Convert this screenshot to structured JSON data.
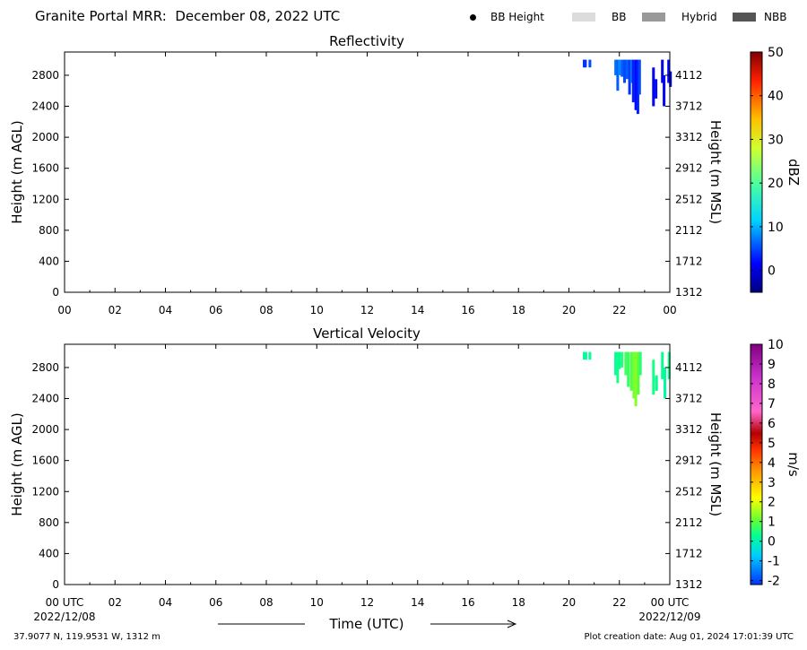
{
  "header": {
    "title": "Granite Portal MRR:  December 08, 2022 UTC",
    "legend": [
      {
        "label": "BB Height",
        "kind": "dot",
        "color": "#000000"
      },
      {
        "label": "BB",
        "kind": "swatch",
        "color": "#dcdcdc"
      },
      {
        "label": "Hybrid",
        "kind": "swatch",
        "color": "#999999"
      },
      {
        "label": "NBB",
        "kind": "swatch",
        "color": "#555555"
      }
    ]
  },
  "footer": {
    "location": "37.9077 N, 119.9531 W, 1312 m",
    "creation": "Plot creation date: Aug 01, 2024 17:01:39 UTC",
    "time_label": "Time (UTC)",
    "start_date": "2022/12/08",
    "end_date": "2022/12/09"
  },
  "chart_data": [
    {
      "type": "heatmap",
      "title": "Reflectivity",
      "xlabel": "",
      "ylabel": "Height (m AGL)",
      "ylabel_right": "Height (m MSL)",
      "x_ticks": [
        "00",
        "02",
        "04",
        "06",
        "08",
        "10",
        "12",
        "14",
        "16",
        "18",
        "20",
        "22",
        "00"
      ],
      "x_range_hours": [
        0,
        24
      ],
      "y_range": [
        0,
        3100
      ],
      "y_ticks": [
        0,
        400,
        800,
        1200,
        1600,
        2000,
        2400,
        2800
      ],
      "y_ticks_right": [
        "1312",
        "1712",
        "2112",
        "2512",
        "2912",
        "3312",
        "3712",
        "4112"
      ],
      "colorbar": {
        "label": "dBZ",
        "range": [
          -5,
          50
        ],
        "ticks": [
          0,
          10,
          20,
          30,
          40,
          50
        ]
      },
      "columns": [
        {
          "t": 20.55,
          "top": 3000,
          "bottom": 2900,
          "value": 4
        },
        {
          "t": 20.6,
          "top": 3000,
          "bottom": 2900,
          "value": 4
        },
        {
          "t": 20.78,
          "top": 3000,
          "bottom": 2900,
          "value": 5
        },
        {
          "t": 21.8,
          "top": 3000,
          "bottom": 2800,
          "value": 7
        },
        {
          "t": 21.88,
          "top": 3000,
          "bottom": 2600,
          "value": 6
        },
        {
          "t": 21.95,
          "top": 3000,
          "bottom": 2800,
          "value": 8
        },
        {
          "t": 22.05,
          "top": 3000,
          "bottom": 2780,
          "value": 6
        },
        {
          "t": 22.15,
          "top": 3000,
          "bottom": 2700,
          "value": 5
        },
        {
          "t": 22.25,
          "top": 3000,
          "bottom": 2750,
          "value": 6
        },
        {
          "t": 22.35,
          "top": 3000,
          "bottom": 2550,
          "value": 4
        },
        {
          "t": 22.42,
          "top": 3000,
          "bottom": 2700,
          "value": 7
        },
        {
          "t": 22.5,
          "top": 3000,
          "bottom": 2450,
          "value": 3
        },
        {
          "t": 22.6,
          "top": 3000,
          "bottom": 2350,
          "value": 2
        },
        {
          "t": 22.68,
          "top": 3000,
          "bottom": 2300,
          "value": 3
        },
        {
          "t": 22.75,
          "top": 3000,
          "bottom": 2550,
          "value": 5
        },
        {
          "t": 23.3,
          "top": 2900,
          "bottom": 2400,
          "value": 1
        },
        {
          "t": 23.4,
          "top": 2750,
          "bottom": 2500,
          "value": 2
        },
        {
          "t": 23.65,
          "top": 3000,
          "bottom": 2700,
          "value": 0
        },
        {
          "t": 23.72,
          "top": 2800,
          "bottom": 2400,
          "value": 1
        },
        {
          "t": 23.9,
          "top": 3000,
          "bottom": 2700,
          "value": 2
        },
        {
          "t": 23.97,
          "top": 2850,
          "bottom": 2650,
          "value": 1
        }
      ]
    },
    {
      "type": "heatmap",
      "title": "Vertical Velocity",
      "xlabel": "Time (UTC)",
      "ylabel": "Height (m AGL)",
      "ylabel_right": "Height (m MSL)",
      "x_ticks": [
        "00 UTC",
        "02",
        "04",
        "06",
        "08",
        "10",
        "12",
        "14",
        "16",
        "18",
        "20",
        "22",
        "00 UTC"
      ],
      "x_range_hours": [
        0,
        24
      ],
      "y_range": [
        0,
        3100
      ],
      "y_ticks": [
        0,
        400,
        800,
        1200,
        1600,
        2000,
        2400,
        2800
      ],
      "y_ticks_right": [
        "1312",
        "1712",
        "2112",
        "2512",
        "2912",
        "3312",
        "3712",
        "4112"
      ],
      "colorbar": {
        "label": "m/s",
        "range": [
          -2.2,
          10
        ],
        "ticks": [
          -2,
          -1,
          0,
          1,
          2,
          3,
          4,
          5,
          6,
          7,
          8,
          9,
          10
        ]
      },
      "columns": [
        {
          "t": 20.55,
          "top": 3000,
          "bottom": 2900,
          "value": 0.2
        },
        {
          "t": 20.62,
          "top": 3000,
          "bottom": 2900,
          "value": 0.2
        },
        {
          "t": 20.78,
          "top": 3000,
          "bottom": 2900,
          "value": 0.3
        },
        {
          "t": 21.8,
          "top": 3000,
          "bottom": 2700,
          "value": 0.2
        },
        {
          "t": 21.88,
          "top": 3000,
          "bottom": 2600,
          "value": 0.4
        },
        {
          "t": 21.95,
          "top": 3000,
          "bottom": 2780,
          "value": 0.3
        },
        {
          "t": 22.05,
          "top": 3000,
          "bottom": 2800,
          "value": 0.5
        },
        {
          "t": 22.2,
          "top": 3000,
          "bottom": 2700,
          "value": 0.8
        },
        {
          "t": 22.3,
          "top": 3000,
          "bottom": 2550,
          "value": 0.7
        },
        {
          "t": 22.42,
          "top": 3000,
          "bottom": 2500,
          "value": 0.9
        },
        {
          "t": 22.52,
          "top": 3000,
          "bottom": 2400,
          "value": 1.2
        },
        {
          "t": 22.6,
          "top": 3000,
          "bottom": 2300,
          "value": 1.3
        },
        {
          "t": 22.7,
          "top": 3000,
          "bottom": 2450,
          "value": 1.0
        },
        {
          "t": 22.78,
          "top": 3000,
          "bottom": 2700,
          "value": 0.6
        },
        {
          "t": 23.3,
          "top": 2900,
          "bottom": 2450,
          "value": 0.4
        },
        {
          "t": 23.42,
          "top": 2700,
          "bottom": 2500,
          "value": 0.3
        },
        {
          "t": 23.65,
          "top": 3000,
          "bottom": 2650,
          "value": 0.3
        },
        {
          "t": 23.75,
          "top": 2800,
          "bottom": 2400,
          "value": 0.2
        },
        {
          "t": 23.92,
          "top": 3000,
          "bottom": 2650,
          "value": 0.4
        }
      ]
    }
  ]
}
